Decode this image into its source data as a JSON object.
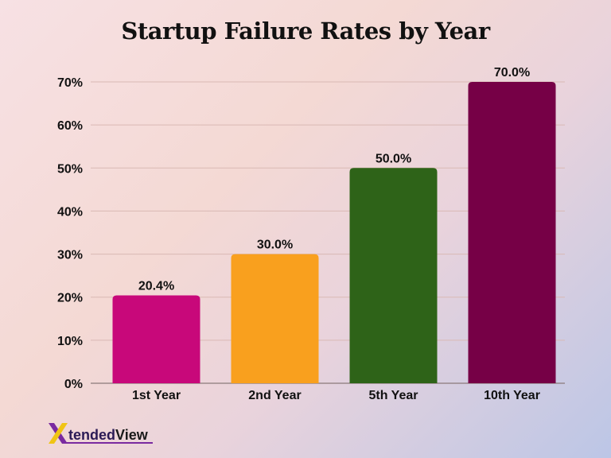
{
  "chart_data": {
    "type": "bar",
    "title": "Startup Failure Rates by Year",
    "categories": [
      "1st Year",
      "2nd Year",
      "5th Year",
      "10th Year"
    ],
    "values": [
      20.4,
      30.0,
      50.0,
      70.0
    ],
    "value_labels": [
      "20.4%",
      "30.0%",
      "50.0%",
      "70.0%"
    ],
    "colors": [
      "#c8087a",
      "#f9a01e",
      "#2e6318",
      "#760046"
    ],
    "ylim": [
      0,
      70
    ],
    "yticks": [
      0,
      10,
      20,
      30,
      40,
      50,
      60,
      70
    ],
    "ytick_labels": [
      "0%",
      "10%",
      "20%",
      "30%",
      "40%",
      "50%",
      "60%",
      "70%"
    ],
    "xlabel": "",
    "ylabel": "",
    "grid": true,
    "gridline_color": "#d9b9b4"
  },
  "logo": {
    "text_part1": "tended",
    "text_part2": "View",
    "x_colors": [
      "#f0c414",
      "#7a2aa0"
    ]
  }
}
